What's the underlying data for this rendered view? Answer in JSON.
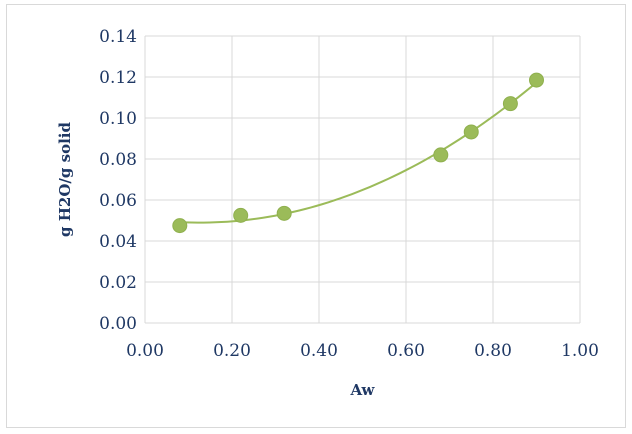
{
  "chart_data": {
    "type": "scatter",
    "title": "",
    "xlabel": "Aw",
    "ylabel": "g H2O/g solid",
    "xlim": [
      0,
      1
    ],
    "ylim": [
      0,
      0.14
    ],
    "x_ticks": [
      "0.00",
      "0.20",
      "0.40",
      "0.60",
      "0.80",
      "1.00"
    ],
    "y_ticks": [
      "0.00",
      "0.02",
      "0.04",
      "0.06",
      "0.08",
      "0.10",
      "0.12",
      "0.14"
    ],
    "grid": true,
    "trendline": "polynomial",
    "series": [
      {
        "points": [
          {
            "x": 0.08,
            "y": 0.0475
          },
          {
            "x": 0.22,
            "y": 0.0525
          },
          {
            "x": 0.32,
            "y": 0.0535
          },
          {
            "x": 0.68,
            "y": 0.082
          },
          {
            "x": 0.75,
            "y": 0.0932
          },
          {
            "x": 0.84,
            "y": 0.107
          },
          {
            "x": 0.9,
            "y": 0.1185
          }
        ]
      }
    ],
    "colors": {
      "marker": "#9bbb59",
      "trendline": "#9bbb59",
      "grid": "#d9d9d9",
      "text": "#1f3864"
    }
  }
}
